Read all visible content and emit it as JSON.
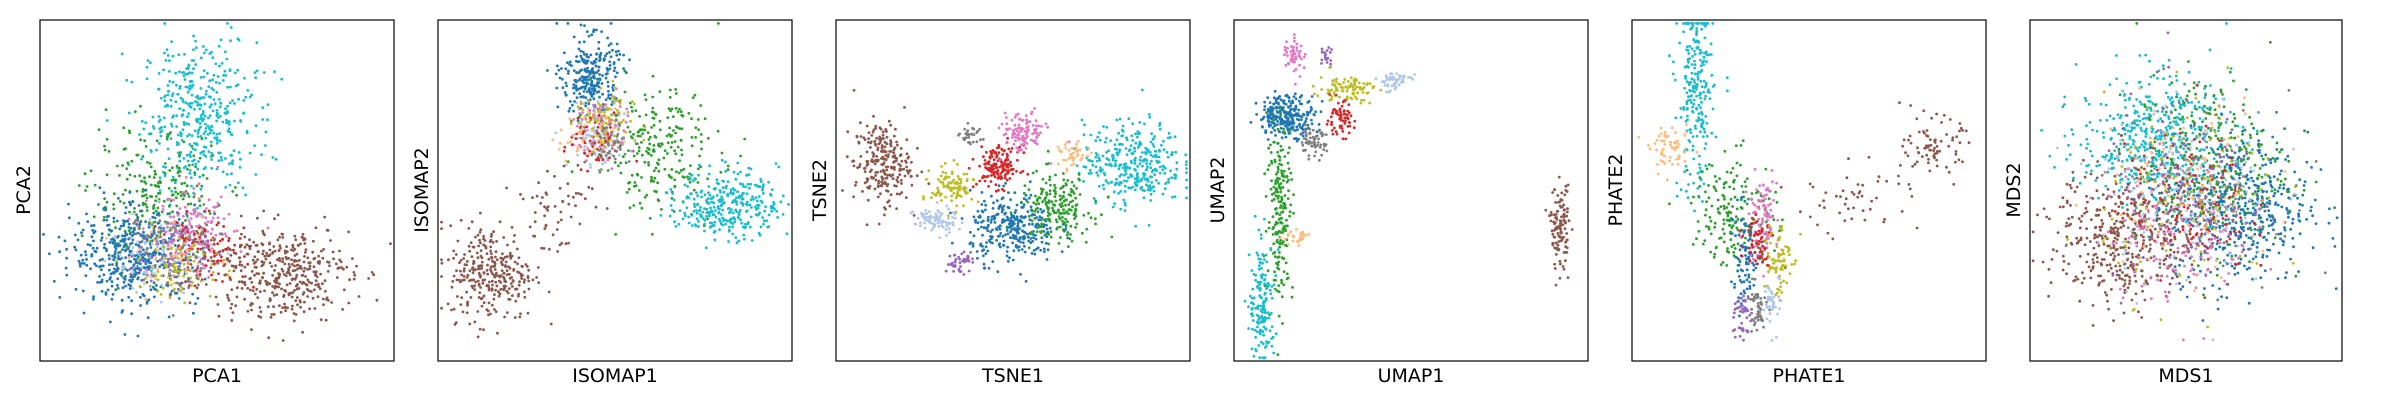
{
  "palette": {
    "c0": "#1f77b4",
    "c1": "#aec7e8",
    "c2": "#2ca02c",
    "c3": "#d62728",
    "c4": "#9467bd",
    "c5": "#8c564b",
    "c6": "#e377c2",
    "c7": "#7f7f7f",
    "c8": "#bcbd22",
    "c9": "#17becf",
    "c10": "#ffbb78"
  },
  "chart_data": [
    {
      "type": "scatter",
      "title": "",
      "xlabel": "PCA1",
      "ylabel": "PCA2",
      "xlim": [
        0,
        100
      ],
      "ylim": [
        0,
        100
      ],
      "ticks": "none",
      "grid": false,
      "legend": "none",
      "clusters": [
        {
          "color": "c9",
          "n": 420,
          "cx": 45,
          "cy": 72,
          "sx": 8,
          "sy": 11
        },
        {
          "color": "c2",
          "n": 230,
          "cx": 32,
          "cy": 48,
          "sx": 9,
          "sy": 9
        },
        {
          "color": "c0",
          "n": 480,
          "cx": 27,
          "cy": 31,
          "sx": 9,
          "sy": 7
        },
        {
          "color": "c1",
          "n": 90,
          "cx": 34,
          "cy": 32,
          "sx": 7,
          "sy": 6
        },
        {
          "color": "c6",
          "n": 160,
          "cx": 43,
          "cy": 37,
          "sx": 6,
          "sy": 6
        },
        {
          "color": "c3",
          "n": 110,
          "cx": 46,
          "cy": 32,
          "sx": 6,
          "sy": 5
        },
        {
          "color": "c8",
          "n": 90,
          "cx": 40,
          "cy": 28,
          "sx": 6,
          "sy": 5
        },
        {
          "color": "c4",
          "n": 60,
          "cx": 38,
          "cy": 33,
          "sx": 7,
          "sy": 6
        },
        {
          "color": "c10",
          "n": 40,
          "cx": 37,
          "cy": 30,
          "sx": 6,
          "sy": 5
        },
        {
          "color": "c7",
          "n": 50,
          "cx": 40,
          "cy": 31,
          "sx": 7,
          "sy": 6
        },
        {
          "color": "c5",
          "n": 400,
          "cx": 68,
          "cy": 26,
          "sx": 10,
          "sy": 7
        }
      ]
    },
    {
      "type": "scatter",
      "title": "",
      "xlabel": "ISOMAP1",
      "ylabel": "ISOMAP2",
      "xlim": [
        0,
        100
      ],
      "ylim": [
        0,
        100
      ],
      "ticks": "none",
      "grid": false,
      "legend": "none",
      "clusters": [
        {
          "color": "c0",
          "n": 280,
          "cx": 43,
          "cy": 83,
          "sx": 4,
          "sy": 6
        },
        {
          "color": "c2",
          "n": 240,
          "cx": 62,
          "cy": 62,
          "sx": 9,
          "sy": 9
        },
        {
          "color": "c9",
          "n": 320,
          "cx": 82,
          "cy": 46,
          "sx": 7,
          "sy": 5
        },
        {
          "color": "c1",
          "n": 70,
          "cx": 45,
          "cy": 66,
          "sx": 4,
          "sy": 5
        },
        {
          "color": "c6",
          "n": 80,
          "cx": 47,
          "cy": 68,
          "sx": 4,
          "sy": 5
        },
        {
          "color": "c3",
          "n": 60,
          "cx": 44,
          "cy": 64,
          "sx": 4,
          "sy": 4
        },
        {
          "color": "c8",
          "n": 80,
          "cx": 47,
          "cy": 70,
          "sx": 4,
          "sy": 5
        },
        {
          "color": "c10",
          "n": 50,
          "cx": 42,
          "cy": 66,
          "sx": 4,
          "sy": 4
        },
        {
          "color": "c7",
          "n": 40,
          "cx": 48,
          "cy": 64,
          "sx": 4,
          "sy": 4
        },
        {
          "color": "c5",
          "n": 300,
          "cx": 15,
          "cy": 26,
          "sx": 6,
          "sy": 7
        },
        {
          "color": "c5",
          "n": 60,
          "cx": 32,
          "cy": 45,
          "sx": 6,
          "sy": 8
        }
      ]
    },
    {
      "type": "scatter",
      "title": "",
      "xlabel": "TSNE1",
      "ylabel": "TSNE2",
      "xlim": [
        0,
        100
      ],
      "ylim": [
        0,
        100
      ],
      "ticks": "none",
      "grid": false,
      "legend": "none",
      "clusters": [
        {
          "color": "c5",
          "n": 240,
          "cx": 13,
          "cy": 58,
          "sx": 4,
          "sy": 6
        },
        {
          "color": "c9",
          "n": 340,
          "cx": 84,
          "cy": 58,
          "sx": 7,
          "sy": 6
        },
        {
          "color": "c0",
          "n": 300,
          "cx": 50,
          "cy": 39,
          "sx": 6,
          "sy": 5
        },
        {
          "color": "c2",
          "n": 200,
          "cx": 62,
          "cy": 45,
          "sx": 5,
          "sy": 5
        },
        {
          "color": "c3",
          "n": 150,
          "cx": 46,
          "cy": 57,
          "sx": 3,
          "sy": 3
        },
        {
          "color": "c6",
          "n": 110,
          "cx": 53,
          "cy": 67,
          "sx": 3,
          "sy": 3
        },
        {
          "color": "c8",
          "n": 100,
          "cx": 33,
          "cy": 51,
          "sx": 3,
          "sy": 3
        },
        {
          "color": "c1",
          "n": 80,
          "cx": 28,
          "cy": 41,
          "sx": 3,
          "sy": 2
        },
        {
          "color": "c4",
          "n": 40,
          "cx": 35,
          "cy": 29,
          "sx": 2,
          "sy": 1.5
        },
        {
          "color": "c7",
          "n": 30,
          "cx": 38,
          "cy": 66,
          "sx": 1.5,
          "sy": 1.5
        },
        {
          "color": "c10",
          "n": 40,
          "cx": 67,
          "cy": 60,
          "sx": 2,
          "sy": 2
        }
      ]
    },
    {
      "type": "scatter",
      "title": "",
      "xlabel": "UMAP1",
      "ylabel": "UMAP2",
      "xlim": [
        0,
        100
      ],
      "ylim": [
        0,
        100
      ],
      "ticks": "none",
      "grid": false,
      "legend": "none",
      "clusters": [
        {
          "color": "c0",
          "n": 260,
          "cx": 15,
          "cy": 72,
          "sx": 4,
          "sy": 3
        },
        {
          "color": "c6",
          "n": 50,
          "cx": 17,
          "cy": 90,
          "sx": 1.5,
          "sy": 3
        },
        {
          "color": "c4",
          "n": 20,
          "cx": 26,
          "cy": 89,
          "sx": 1,
          "sy": 1.5
        },
        {
          "color": "c8",
          "n": 90,
          "cx": 32,
          "cy": 80,
          "sx": 4,
          "sy": 2
        },
        {
          "color": "c1",
          "n": 50,
          "cx": 45,
          "cy": 82,
          "sx": 2.5,
          "sy": 1.5
        },
        {
          "color": "c3",
          "n": 70,
          "cx": 30,
          "cy": 71,
          "sx": 2,
          "sy": 2.5
        },
        {
          "color": "c7",
          "n": 60,
          "cx": 22,
          "cy": 64,
          "sx": 2,
          "sy": 2
        },
        {
          "color": "c2",
          "n": 200,
          "cx": 13,
          "cy": 45,
          "sx": 1.8,
          "sy": 13
        },
        {
          "color": "c9",
          "n": 160,
          "cx": 8,
          "cy": 17,
          "sx": 1.8,
          "sy": 9
        },
        {
          "color": "c10",
          "n": 25,
          "cx": 18,
          "cy": 36,
          "sx": 2,
          "sy": 1
        },
        {
          "color": "c5",
          "n": 120,
          "cx": 92,
          "cy": 39,
          "sx": 1.3,
          "sy": 6
        }
      ]
    },
    {
      "type": "scatter",
      "title": "",
      "xlabel": "PHATE1",
      "ylabel": "PHATE2",
      "xlim": [
        0,
        100
      ],
      "ylim": [
        0,
        100
      ],
      "ticks": "none",
      "grid": false,
      "legend": "none",
      "clusters": [
        {
          "color": "c9",
          "n": 240,
          "cx": 18,
          "cy": 78,
          "sx": 2.5,
          "sy": 15
        },
        {
          "color": "c2",
          "n": 180,
          "cx": 29,
          "cy": 44,
          "sx": 6,
          "sy": 8
        },
        {
          "color": "c10",
          "n": 60,
          "cx": 11,
          "cy": 62,
          "sx": 3,
          "sy": 3
        },
        {
          "color": "c0",
          "n": 90,
          "cx": 32,
          "cy": 30,
          "sx": 2,
          "sy": 7
        },
        {
          "color": "c6",
          "n": 90,
          "cx": 37,
          "cy": 42,
          "sx": 2,
          "sy": 6
        },
        {
          "color": "c3",
          "n": 60,
          "cx": 36,
          "cy": 36,
          "sx": 2,
          "sy": 4
        },
        {
          "color": "c8",
          "n": 70,
          "cx": 41,
          "cy": 30,
          "sx": 2,
          "sy": 6
        },
        {
          "color": "c7",
          "n": 50,
          "cx": 35,
          "cy": 15,
          "sx": 1.5,
          "sy": 4
        },
        {
          "color": "c4",
          "n": 40,
          "cx": 31,
          "cy": 13,
          "sx": 1.3,
          "sy": 4
        },
        {
          "color": "c1",
          "n": 40,
          "cx": 40,
          "cy": 17,
          "sx": 1.3,
          "sy": 4
        },
        {
          "color": "c5",
          "n": 80,
          "cx": 85,
          "cy": 63,
          "sx": 4,
          "sy": 4
        },
        {
          "color": "c5",
          "n": 50,
          "cx": 63,
          "cy": 48,
          "sx": 9,
          "sy": 5
        }
      ]
    },
    {
      "type": "scatter",
      "title": "",
      "xlabel": "MDS1",
      "ylabel": "MDS2",
      "xlim": [
        0,
        100
      ],
      "ylim": [
        0,
        100
      ],
      "ticks": "none",
      "grid": false,
      "legend": "none",
      "clusters": [
        {
          "color": "c9",
          "n": 520,
          "cx": 40,
          "cy": 64,
          "sx": 12,
          "sy": 10
        },
        {
          "color": "c5",
          "n": 420,
          "cx": 30,
          "cy": 36,
          "sx": 11,
          "sy": 10
        },
        {
          "color": "c0",
          "n": 520,
          "cx": 67,
          "cy": 45,
          "sx": 11,
          "sy": 11
        },
        {
          "color": "c2",
          "n": 260,
          "cx": 58,
          "cy": 58,
          "sx": 12,
          "sy": 13
        },
        {
          "color": "c3",
          "n": 160,
          "cx": 50,
          "cy": 45,
          "sx": 10,
          "sy": 10
        },
        {
          "color": "c6",
          "n": 160,
          "cx": 48,
          "cy": 40,
          "sx": 12,
          "sy": 11
        },
        {
          "color": "c1",
          "n": 140,
          "cx": 50,
          "cy": 50,
          "sx": 14,
          "sy": 14
        },
        {
          "color": "c8",
          "n": 120,
          "cx": 52,
          "cy": 48,
          "sx": 14,
          "sy": 14
        },
        {
          "color": "c4",
          "n": 80,
          "cx": 50,
          "cy": 50,
          "sx": 14,
          "sy": 14
        },
        {
          "color": "c10",
          "n": 80,
          "cx": 50,
          "cy": 50,
          "sx": 14,
          "sy": 14
        },
        {
          "color": "c7",
          "n": 80,
          "cx": 50,
          "cy": 50,
          "sx": 14,
          "sy": 14
        }
      ]
    }
  ]
}
